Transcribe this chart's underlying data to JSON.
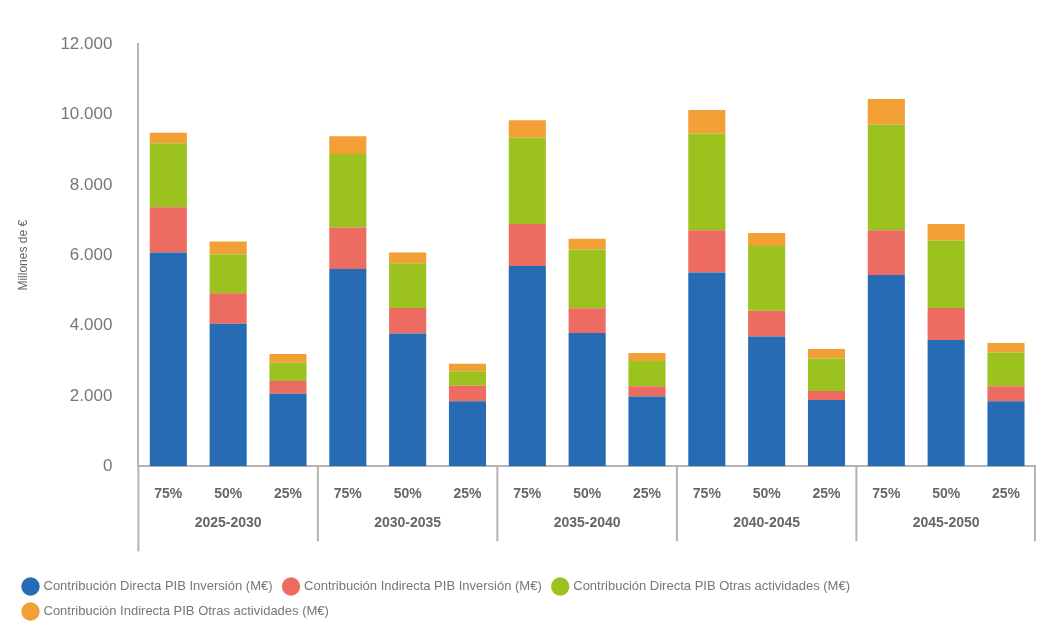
{
  "chart_data": {
    "type": "bar",
    "stacked": true,
    "ylabel": "Millones de €",
    "categories": [
      "75%",
      "50%",
      "25%",
      "75%",
      "50%",
      "25%",
      "75%",
      "50%",
      "25%",
      "75%",
      "50%",
      "25%",
      "75%",
      "50%",
      "25%"
    ],
    "annotations": [
      "2025-2030",
      "2030-2035",
      "2035-2040",
      "2040-2045",
      "2045-2050"
    ],
    "series": [
      {
        "name": "Contribución Directa PIB Inversión (M€)",
        "color": "#266bb3",
        "values": [
          6080,
          4050,
          2060,
          5610,
          3770,
          1850,
          5690,
          3790,
          1980,
          5510,
          3690,
          1880,
          5440,
          3590,
          1850
        ]
      },
      {
        "name": "Contribución Indirecta PIB Inversión (M€)",
        "color": "#ed6c61",
        "values": [
          1280,
          870,
          360,
          1180,
          730,
          440,
          1200,
          700,
          290,
          1200,
          730,
          260,
          1270,
          910,
          420
        ]
      },
      {
        "name": "Contribución Directa PIB Otras actividades (M€)",
        "color": "#9cc220",
        "values": [
          1820,
          1110,
          520,
          2090,
          1270,
          410,
          2460,
          1670,
          720,
          2750,
          1840,
          920,
          3000,
          1920,
          960
        ]
      },
      {
        "name": "Contribución Indirecta PIB Otras actividades (M€)",
        "color": "#f29f35",
        "values": [
          300,
          360,
          250,
          500,
          310,
          210,
          490,
          310,
          230,
          670,
          370,
          270,
          730,
          470,
          270
        ]
      }
    ],
    "ylim": [
      0,
      12000
    ],
    "yticks": [
      0,
      {
        "value": 2000,
        "label": "2.000"
      },
      {
        "value": 4000,
        "label": "4.000"
      },
      {
        "value": 6000,
        "label": "6.000"
      },
      {
        "value": 8000,
        "label": "8.000"
      },
      {
        "value": 10000,
        "label": "10.000"
      },
      {
        "value": 12000,
        "label": "12.000"
      }
    ],
    "grid": false,
    "legend": "bottom"
  }
}
